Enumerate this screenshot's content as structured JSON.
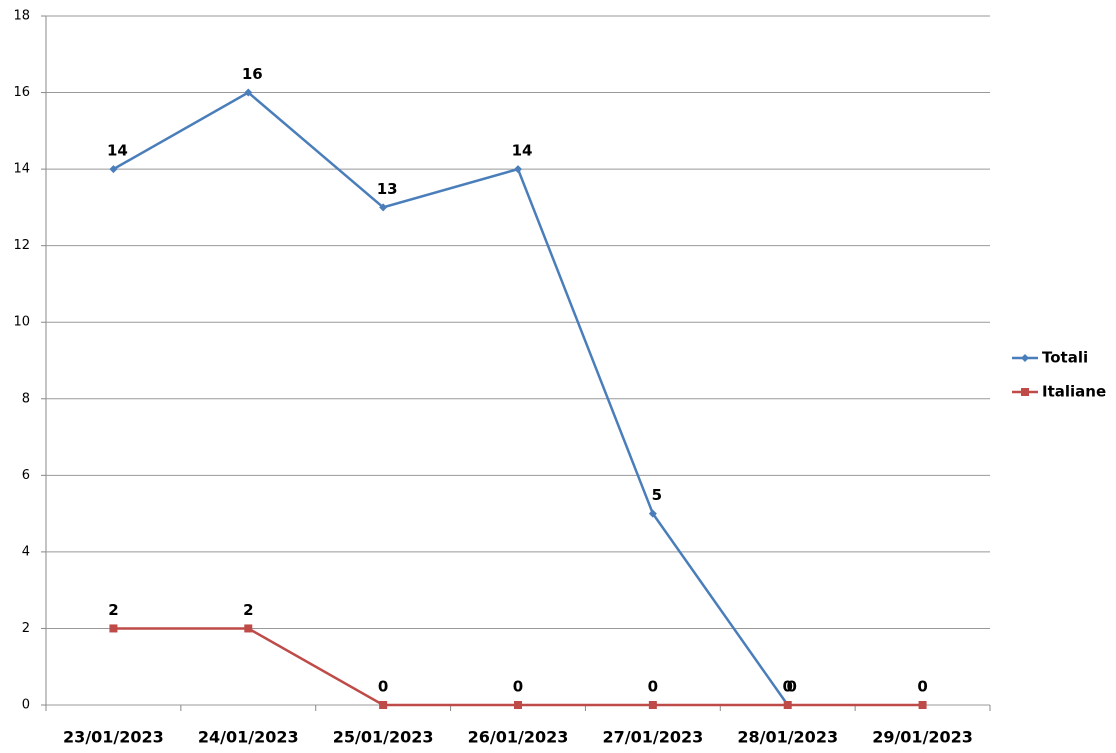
{
  "chart_data": {
    "type": "line",
    "categories": [
      "23/01/2023",
      "24/01/2023",
      "25/01/2023",
      "26/01/2023",
      "27/01/2023",
      "28/01/2023",
      "29/01/2023"
    ],
    "series": [
      {
        "name": "Totali",
        "color": "#4a7ebb",
        "values": [
          14,
          16,
          13,
          14,
          5,
          0,
          null
        ]
      },
      {
        "name": "Italiane",
        "color": "#be4b48",
        "values": [
          2,
          2,
          0,
          0,
          0,
          0,
          0
        ]
      }
    ],
    "ylim": [
      0,
      18
    ],
    "yticks": [
      0,
      2,
      4,
      6,
      8,
      10,
      12,
      14,
      16,
      18
    ],
    "grid": true,
    "legend": "right"
  }
}
